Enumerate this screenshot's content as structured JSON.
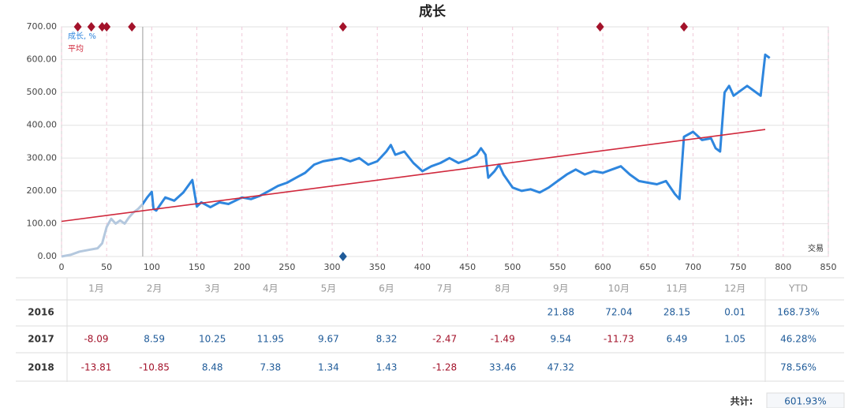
{
  "chart_data": {
    "type": "line",
    "title": "成长",
    "x_label": "交易",
    "xlim": [
      0,
      850
    ],
    "xticks": [
      0,
      50,
      100,
      150,
      200,
      250,
      300,
      350,
      400,
      450,
      500,
      550,
      600,
      650,
      700,
      750,
      800,
      850
    ],
    "ylim": [
      0,
      700
    ],
    "yticks": [
      {
        "value": 0,
        "label": "0.00"
      },
      {
        "value": 100,
        "label": "100.00"
      },
      {
        "value": 200,
        "label": "200.00"
      },
      {
        "value": 300,
        "label": "300.00"
      },
      {
        "value": 400,
        "label": "400.00"
      },
      {
        "value": 500,
        "label": "500.00"
      },
      {
        "value": 600,
        "label": "600.00"
      },
      {
        "value": 700,
        "label": "700.00"
      }
    ],
    "grid": true,
    "legend": "top-left",
    "marker_x": 90,
    "pre_marker_color": "#b4c8de",
    "top_markers": {
      "color": "#a3122a",
      "x": [
        18,
        33,
        45,
        50,
        78,
        312,
        597,
        690
      ]
    },
    "bottom_markers": {
      "color": "#1f5b99",
      "x": [
        312
      ]
    },
    "series": [
      {
        "name": "成长, %",
        "color": "#2e86de",
        "x": [
          0,
          10,
          20,
          30,
          40,
          45,
          50,
          55,
          60,
          65,
          70,
          75,
          80,
          85,
          90,
          95,
          100,
          102,
          105,
          115,
          125,
          135,
          145,
          150,
          155,
          165,
          175,
          185,
          200,
          210,
          220,
          230,
          240,
          250,
          260,
          270,
          280,
          290,
          300,
          310,
          320,
          330,
          340,
          350,
          360,
          365,
          370,
          380,
          390,
          400,
          410,
          420,
          430,
          440,
          450,
          460,
          465,
          470,
          473,
          480,
          485,
          490,
          500,
          510,
          520,
          530,
          540,
          550,
          560,
          570,
          580,
          590,
          600,
          610,
          620,
          630,
          640,
          650,
          660,
          670,
          680,
          685,
          690,
          700,
          710,
          720,
          725,
          730,
          735,
          740,
          745,
          760,
          770,
          775,
          780,
          785
        ],
        "values": [
          0,
          5,
          15,
          20,
          25,
          40,
          90,
          115,
          100,
          110,
          100,
          120,
          135,
          145,
          160,
          180,
          197,
          145,
          140,
          180,
          170,
          195,
          233,
          152,
          165,
          150,
          165,
          160,
          180,
          175,
          185,
          200,
          215,
          225,
          240,
          255,
          280,
          290,
          295,
          300,
          290,
          300,
          280,
          290,
          320,
          340,
          310,
          320,
          285,
          260,
          275,
          285,
          300,
          285,
          295,
          310,
          330,
          310,
          240,
          260,
          280,
          250,
          210,
          200,
          205,
          195,
          210,
          230,
          250,
          265,
          250,
          260,
          255,
          265,
          275,
          250,
          230,
          225,
          220,
          230,
          190,
          175,
          365,
          380,
          355,
          360,
          330,
          320,
          500,
          520,
          490,
          520,
          500,
          490,
          615,
          605
        ]
      },
      {
        "name": "平均",
        "color": "#d0283c",
        "x": [
          0,
          780
        ],
        "values": [
          107,
          387
        ]
      }
    ]
  },
  "table": {
    "header": [
      null,
      "1月",
      "2月",
      "3月",
      "4月",
      "5月",
      "6月",
      "7月",
      "8月",
      "9月",
      "10月",
      "11月",
      "12月",
      "YTD"
    ],
    "rows": [
      [
        "2016",
        null,
        null,
        null,
        null,
        null,
        null,
        null,
        null,
        "21.88",
        "72.04",
        "28.15",
        "0.01",
        "168.73%"
      ],
      [
        "2017",
        "-8.09",
        "8.59",
        "10.25",
        "11.95",
        "9.67",
        "8.32",
        "-2.47",
        "-1.49",
        "9.54",
        "-11.73",
        "6.49",
        "1.05",
        "46.28%"
      ],
      [
        "2018",
        "-13.81",
        "-10.85",
        "8.48",
        "7.38",
        "1.34",
        "1.43",
        "-1.28",
        "33.46",
        "47.32",
        null,
        null,
        null,
        "78.56%"
      ]
    ],
    "total_label": "共计:",
    "total_value": "601.93%"
  }
}
